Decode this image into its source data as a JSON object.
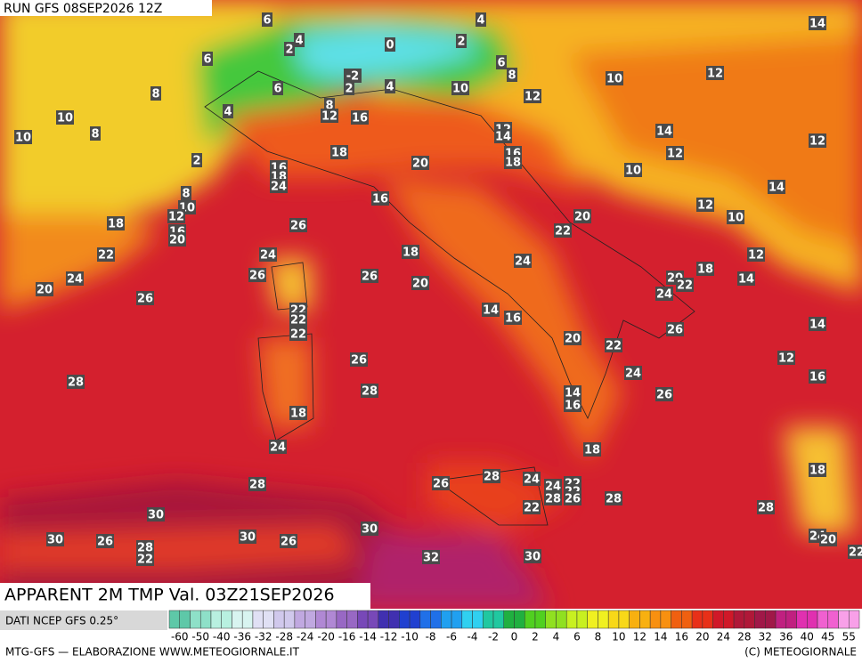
{
  "header": {
    "title": "RUN GFS 08SEP2026 12Z"
  },
  "map": {
    "labels": [
      14,
      4,
      6,
      2,
      4,
      6,
      0,
      2,
      6,
      8,
      8,
      10,
      12,
      -2,
      2,
      4,
      6,
      10,
      12,
      4,
      8,
      12,
      16,
      10,
      8,
      10,
      14,
      12,
      12,
      14,
      16,
      18,
      18,
      20,
      12,
      10,
      2,
      16,
      18,
      24,
      14,
      8,
      16,
      10,
      12,
      20,
      18,
      10,
      12,
      26,
      16,
      20,
      22,
      22,
      24,
      18,
      12,
      24,
      24,
      26,
      20,
      18,
      22,
      26,
      14,
      20,
      20,
      26,
      24,
      14,
      16,
      22,
      22,
      22,
      14,
      26,
      20,
      22,
      26,
      12,
      24,
      28,
      28,
      16,
      26,
      14,
      16,
      18,
      18,
      24,
      18,
      28,
      26,
      28,
      24,
      24,
      22,
      22,
      28,
      26,
      28,
      22,
      28,
      30,
      30,
      30,
      26,
      28,
      30,
      26,
      22,
      24,
      20,
      22,
      32,
      30
    ]
  },
  "footer": {
    "product": "APPARENT 2M TMP Val. 03Z21SEP2026",
    "source": "DATI NCEP GFS 0.25°",
    "credit": "MTG-GFS — ELABORAZIONE WWW.METEOGIORNALE.IT",
    "copyright": "(C) METEOGIORNALE"
  },
  "legend": {
    "ticks": [
      -60,
      -50,
      -40,
      -36,
      -32,
      -28,
      -24,
      -20,
      -16,
      -14,
      -12,
      -10,
      -8,
      -6,
      -4,
      -2,
      0,
      2,
      4,
      6,
      8,
      10,
      12,
      14,
      16,
      20,
      24,
      28,
      32,
      36,
      40,
      45,
      55
    ]
  }
}
